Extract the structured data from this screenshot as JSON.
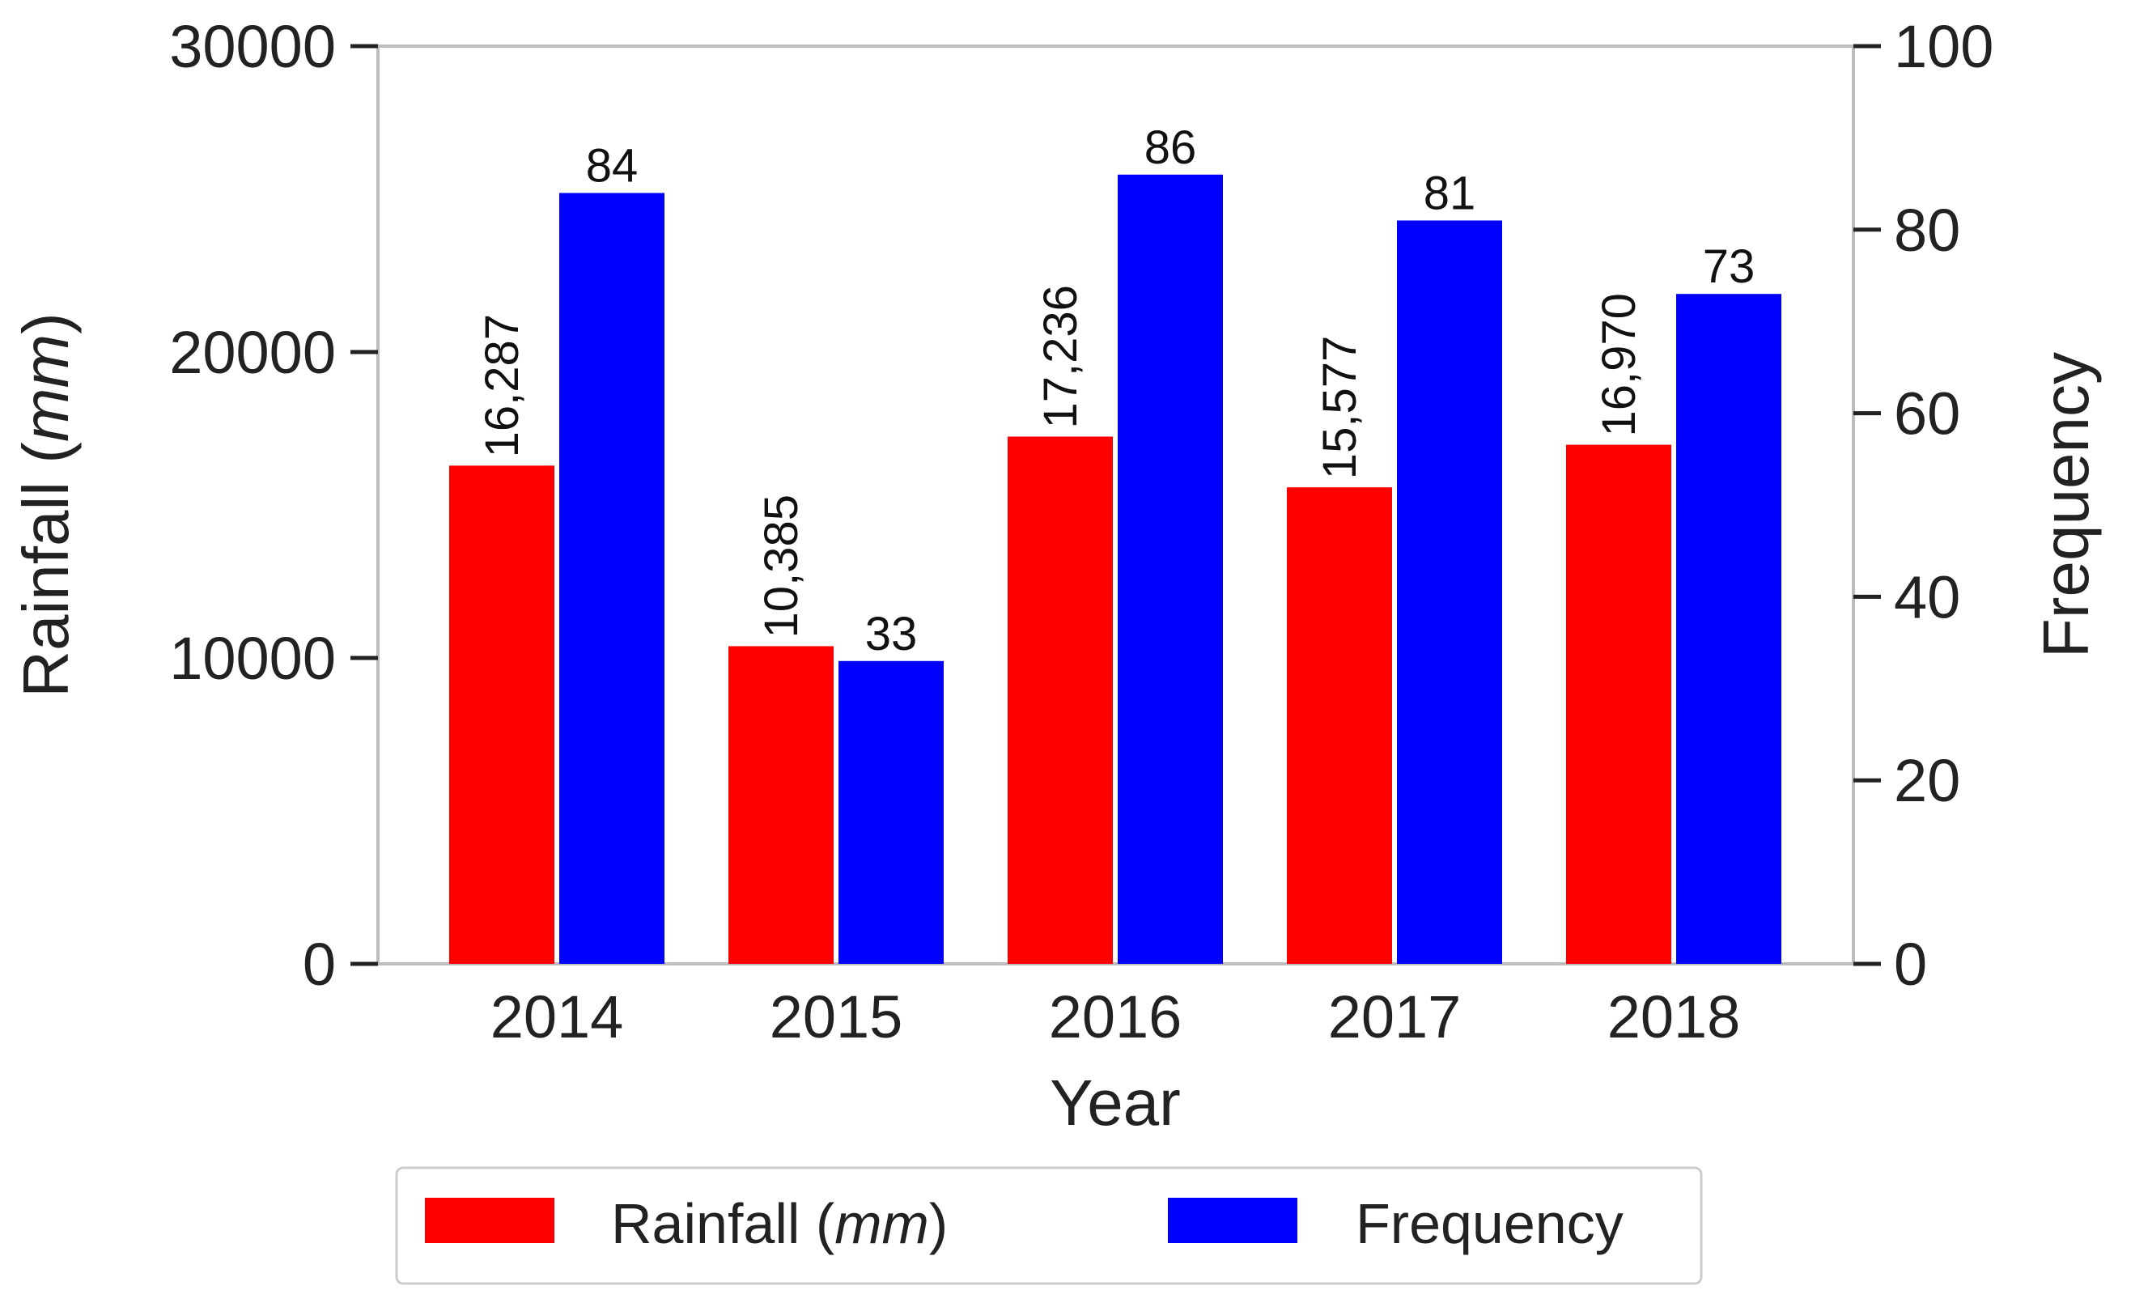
{
  "chart_data": {
    "type": "bar",
    "xlabel": "Year",
    "categories": [
      "2014",
      "2015",
      "2016",
      "2017",
      "2018"
    ],
    "series": [
      {
        "name": "Rainfall (mm)",
        "name_prefix": "Rainfall (",
        "name_unit": "mm",
        "name_suffix": ")",
        "axis": "left",
        "color": "#ff0000",
        "values": [
          16287,
          10385,
          17236,
          15577,
          16970
        ],
        "labels": [
          "16,287",
          "10,385",
          "17,236",
          "15,577",
          "16,970"
        ]
      },
      {
        "name": "Frequency",
        "axis": "right",
        "color": "#0000ff",
        "values": [
          84,
          33,
          86,
          81,
          73
        ],
        "labels": [
          "84",
          "33",
          "86",
          "81",
          "73"
        ]
      }
    ],
    "left_axis": {
      "label_prefix": "Rainfall (",
      "label_unit": "mm",
      "label_suffix": ")",
      "ylim": [
        0,
        30000
      ],
      "ticks": [
        0,
        10000,
        20000,
        30000
      ],
      "tick_labels": [
        "0",
        "10000",
        "20000",
        "30000"
      ]
    },
    "right_axis": {
      "label": "Frequency",
      "ylim": [
        0,
        100
      ],
      "ticks": [
        0,
        20,
        40,
        60,
        80,
        100
      ],
      "tick_labels": [
        "0",
        "20",
        "40",
        "60",
        "80",
        "100"
      ]
    },
    "grid": false,
    "legend_position": "bottom-center"
  }
}
